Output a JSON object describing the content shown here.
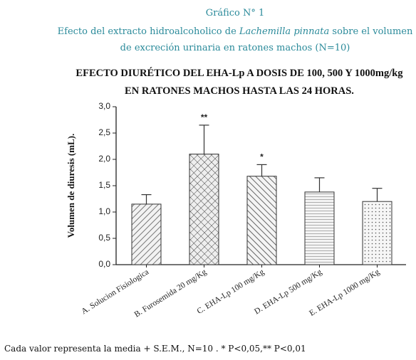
{
  "header": {
    "figure_label": "Gráfico N° 1",
    "caption_before": "Efecto del extracto hidroalcoholico de ",
    "caption_species": "Lachemilla pinnata",
    "caption_after": " sobre el volumen",
    "caption_line2": "de excreción urinaria en ratones machos (N=10)"
  },
  "chart_data": {
    "type": "bar",
    "title": [
      "EFECTO DIURÉTICO DEL EHA-Lp A DOSIS DE 100, 500 Y 1000mg/kg",
      "EN RATONES MACHOS HASTA LAS 24 HORAS."
    ],
    "y_label": "Volumen de diuresis (mL).",
    "categories": [
      "A. Solucion Fisiologica",
      "B. Furosemida 20 mg/Kg",
      "C. EHA-Lp 100 mg/Kg",
      "D. EHA-Lp 500 mg/Kg",
      "E. EHA-Lp 1000 mg/Kg"
    ],
    "values": [
      1.15,
      2.1,
      1.68,
      1.38,
      1.2
    ],
    "errors": [
      0.18,
      0.55,
      0.22,
      0.27,
      0.25
    ],
    "significance": [
      null,
      "**",
      "*",
      null,
      null
    ],
    "ylim": [
      0,
      3
    ],
    "yticks": [
      {
        "value": 0,
        "label": "0,0"
      },
      {
        "value": 0.5,
        "label": "0,5"
      },
      {
        "value": 1,
        "label": "1,0"
      },
      {
        "value": 1.5,
        "label": "1,5"
      },
      {
        "value": 2,
        "label": "2,0"
      },
      {
        "value": 2.5,
        "label": "2,5"
      },
      {
        "value": 3,
        "label": "3,0"
      }
    ]
  },
  "footnote": "Cada valor representa la media + S.E.M., N=10 . * P<0,05,** P<0,01"
}
